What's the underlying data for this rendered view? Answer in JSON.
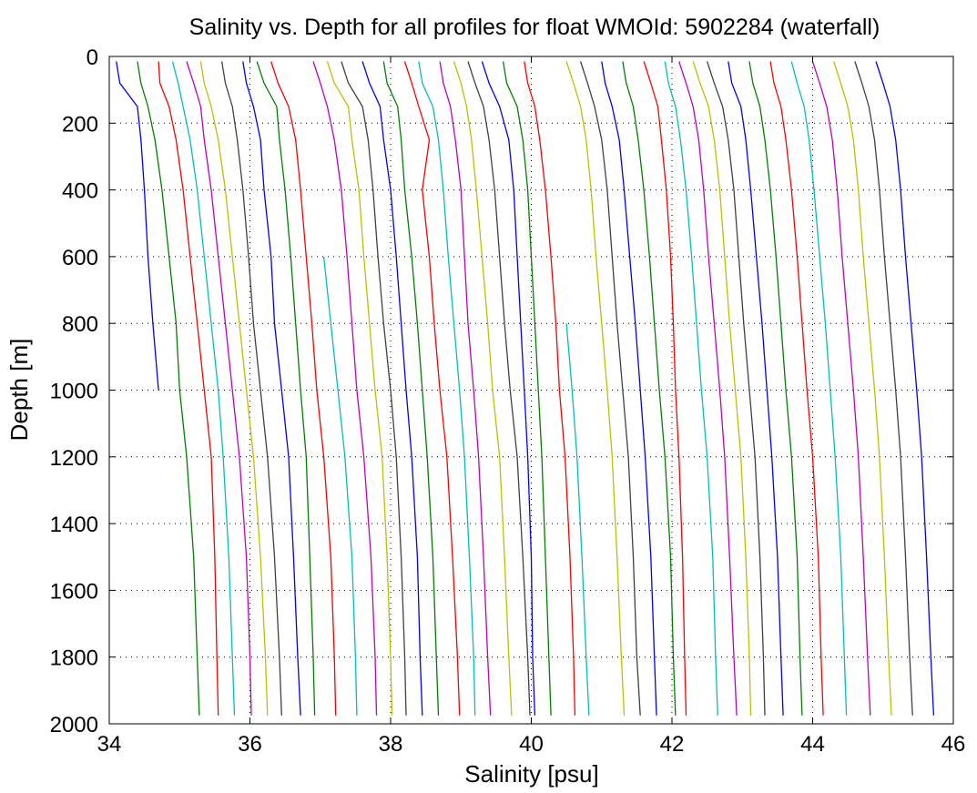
{
  "chart_data": {
    "type": "line",
    "title": "Salinity vs. Depth for all profiles for float WMOId: 5902284 (waterfall)",
    "xlabel": "Salinity [psu]",
    "ylabel": "Depth [m]",
    "xlim": [
      34,
      46
    ],
    "ylim": [
      0,
      2000
    ],
    "y_reversed": true,
    "grid": true,
    "x_ticks": [
      "34",
      "36",
      "38",
      "40",
      "42",
      "44",
      "46"
    ],
    "y_ticks": [
      "0",
      "200",
      "400",
      "600",
      "800",
      "1000",
      "1200",
      "1400",
      "1600",
      "1800",
      "2000"
    ],
    "colors": [
      "#0000ff",
      "#008000",
      "#ff0000",
      "#00bfbf",
      "#bf00bf",
      "#bfbf00",
      "#404040"
    ],
    "depth_levels": [
      15,
      80,
      150,
      250,
      400,
      600,
      800,
      1000,
      1200,
      1500,
      1800,
      1975
    ],
    "series": [
      {
        "color": "#0000ff",
        "values": [
          34.1,
          34.15,
          34.4,
          34.45,
          34.5,
          34.55,
          34.62,
          34.7
        ]
      },
      {
        "color": "#008000",
        "values": [
          34.4,
          34.45,
          34.55,
          34.65,
          34.75,
          34.85,
          34.95,
          35.0,
          35.1,
          35.2,
          35.25,
          35.28
        ]
      },
      {
        "color": "#ff0000",
        "values": [
          34.7,
          34.72,
          34.85,
          34.95,
          35.05,
          35.15,
          35.25,
          35.35,
          35.45,
          35.5,
          35.53,
          35.55
        ]
      },
      {
        "color": "#00bfbf",
        "values": [
          34.9,
          34.98,
          35.05,
          35.15,
          35.25,
          35.35,
          35.45,
          35.55,
          35.62,
          35.7,
          35.75,
          35.78
        ]
      },
      {
        "color": "#bf00bf",
        "values": [
          35.1,
          35.2,
          35.3,
          35.35,
          35.45,
          35.55,
          35.65,
          35.75,
          35.85,
          35.95,
          36.0,
          36.02
        ]
      },
      {
        "color": "#bfbf00",
        "values": [
          35.3,
          35.35,
          35.45,
          35.55,
          35.65,
          35.75,
          35.85,
          35.95,
          36.05,
          36.15,
          36.22,
          36.25
        ]
      },
      {
        "color": "#404040",
        "values": [
          35.6,
          35.65,
          35.75,
          35.82,
          35.9,
          35.98,
          36.05,
          36.15,
          36.25,
          36.35,
          36.42,
          36.45
        ]
      },
      {
        "color": "#0000ff",
        "values": [
          35.9,
          35.95,
          36.05,
          36.15,
          36.2,
          36.3,
          36.35,
          36.45,
          36.55,
          36.62,
          36.68,
          36.72
        ]
      },
      {
        "color": "#008000",
        "values": [
          36.1,
          36.2,
          36.38,
          36.42,
          36.5,
          36.58,
          36.65,
          36.72,
          36.8,
          36.85,
          36.9,
          36.92
        ]
      },
      {
        "color": "#ff0000",
        "values": [
          36.3,
          36.4,
          36.55,
          36.65,
          36.72,
          36.8,
          36.88,
          36.95,
          37.05,
          37.15,
          37.2,
          37.22
        ]
      },
      {
        "color": "#00bfbf",
        "values": [
          null,
          null,
          null,
          null,
          null,
          37.05,
          37.15,
          37.25,
          37.35,
          37.45,
          37.5,
          37.52
        ]
      },
      {
        "color": "#bf00bf",
        "values": [
          36.9,
          37.0,
          37.1,
          37.2,
          37.3,
          37.38,
          37.45,
          37.52,
          37.62,
          37.72,
          37.78,
          37.8
        ]
      },
      {
        "color": "#bfbf00",
        "values": [
          37.1,
          37.2,
          37.4,
          37.45,
          37.55,
          37.62,
          37.7,
          37.78,
          37.88,
          37.95,
          38.0,
          38.02
        ]
      },
      {
        "color": "#404040",
        "values": [
          37.3,
          37.4,
          37.6,
          37.68,
          37.75,
          37.82,
          37.9,
          38.0,
          38.08,
          38.15,
          38.2,
          38.22
        ]
      },
      {
        "color": "#0000ff",
        "values": [
          37.6,
          37.7,
          37.85,
          37.9,
          38.0,
          38.08,
          38.15,
          38.22,
          38.3,
          38.38,
          38.42,
          38.45
        ]
      },
      {
        "color": "#008000",
        "values": [
          37.9,
          37.95,
          38.1,
          38.15,
          38.2,
          38.3,
          38.38,
          38.45,
          38.52,
          38.6,
          38.65,
          38.68
        ]
      },
      {
        "color": "#ff0000",
        "values": [
          38.2,
          38.3,
          38.4,
          38.55,
          38.45,
          38.55,
          38.62,
          38.7,
          38.8,
          38.88,
          38.95,
          38.98
        ]
      },
      {
        "color": "#00bfbf",
        "values": [
          38.4,
          38.45,
          38.6,
          38.68,
          38.75,
          38.82,
          38.9,
          38.98,
          39.05,
          39.12,
          39.18,
          39.2
        ]
      },
      {
        "color": "#bf00bf",
        "values": [
          38.7,
          38.75,
          38.85,
          38.92,
          39.0,
          39.05,
          39.1,
          39.18,
          39.25,
          39.32,
          39.38,
          39.42
        ]
      },
      {
        "color": "#bfbf00",
        "values": [
          38.9,
          39.0,
          39.08,
          39.15,
          39.22,
          39.3,
          39.38,
          39.45,
          39.55,
          39.62,
          39.68,
          39.72
        ]
      },
      {
        "color": "#404040",
        "values": [
          39.1,
          39.2,
          39.32,
          39.4,
          39.48,
          39.55,
          39.62,
          39.7,
          39.8,
          39.88,
          39.95,
          39.98
        ]
      },
      {
        "color": "#0000ff",
        "values": [
          39.3,
          39.4,
          39.55,
          39.68,
          39.75,
          39.8,
          39.85,
          39.9,
          39.95,
          40.0,
          40.02,
          40.05
        ]
      },
      {
        "color": "#008000",
        "values": [
          39.6,
          39.65,
          39.8,
          39.88,
          39.95,
          40.0,
          40.05,
          40.1,
          40.15,
          40.2,
          40.25,
          40.28
        ]
      },
      {
        "color": "#ff0000",
        "values": [
          39.9,
          39.95,
          40.05,
          40.12,
          40.2,
          40.28,
          40.35,
          40.4,
          40.48,
          40.55,
          40.6,
          40.62
        ]
      },
      {
        "color": "#00bfbf",
        "values": [
          null,
          null,
          null,
          null,
          null,
          null,
          40.5,
          40.58,
          40.65,
          40.72,
          40.78,
          40.82
        ]
      },
      {
        "color": "#bfbf00",
        "values": [
          40.5,
          40.6,
          40.7,
          40.78,
          40.85,
          40.92,
          41.0,
          41.08,
          41.15,
          41.22,
          41.28,
          41.32
        ]
      },
      {
        "color": "#404040",
        "values": [
          40.7,
          40.8,
          40.9,
          41.0,
          41.08,
          41.15,
          41.22,
          41.3,
          41.38,
          41.45,
          41.5,
          41.55
        ]
      },
      {
        "color": "#0000ff",
        "values": [
          41.0,
          41.05,
          41.15,
          41.25,
          41.32,
          41.4,
          41.48,
          41.55,
          41.62,
          41.7,
          41.75,
          41.78
        ]
      },
      {
        "color": "#008000",
        "values": [
          41.3,
          41.35,
          41.45,
          41.52,
          41.6,
          41.68,
          41.75,
          41.82,
          41.9,
          41.98,
          42.02,
          42.05
        ]
      },
      {
        "color": "#ff0000",
        "values": [
          41.6,
          41.7,
          41.8,
          41.85,
          41.92,
          41.98,
          42.02,
          42.05,
          42.1,
          42.15,
          42.18,
          42.2
        ]
      },
      {
        "color": "#00bfbf",
        "values": [
          41.9,
          41.95,
          42.05,
          42.12,
          42.2,
          42.28,
          42.35,
          42.42,
          42.5,
          42.58,
          42.62,
          42.65
        ]
      },
      {
        "color": "#bf00bf",
        "values": [
          42.1,
          42.2,
          42.3,
          42.38,
          42.45,
          42.52,
          42.6,
          42.68,
          42.75,
          42.82,
          42.88,
          42.92
        ]
      },
      {
        "color": "#bfbf00",
        "values": [
          42.3,
          42.4,
          42.52,
          42.6,
          42.68,
          42.75,
          42.82,
          42.9,
          42.98,
          43.05,
          43.1,
          43.12
        ]
      },
      {
        "color": "#404040",
        "values": [
          42.5,
          42.6,
          42.72,
          42.8,
          42.88,
          42.95,
          43.02,
          43.1,
          43.18,
          43.25,
          43.3,
          43.32
        ]
      },
      {
        "color": "#0000ff",
        "values": [
          42.8,
          42.85,
          42.98,
          43.05,
          43.12,
          43.2,
          43.28,
          43.35,
          43.42,
          43.5,
          43.55,
          43.58
        ]
      },
      {
        "color": "#008000",
        "values": [
          43.1,
          43.15,
          43.25,
          43.32,
          43.4,
          43.48,
          43.55,
          43.62,
          43.7,
          43.78,
          43.82,
          43.85
        ]
      },
      {
        "color": "#ff0000",
        "values": [
          43.4,
          43.45,
          43.55,
          43.62,
          43.7,
          43.78,
          43.85,
          43.92,
          44.0,
          44.08,
          44.12,
          44.15
        ]
      },
      {
        "color": "#00bfbf",
        "values": [
          43.7,
          43.78,
          43.88,
          43.95,
          44.02,
          44.1,
          44.18,
          44.25,
          44.32,
          44.4,
          44.45,
          44.48
        ]
      },
      {
        "color": "#bf00bf",
        "values": [
          44.0,
          44.1,
          44.2,
          44.28,
          44.35,
          44.42,
          44.5,
          44.58,
          44.65,
          44.72,
          44.78,
          44.82
        ]
      },
      {
        "color": "#bfbf00",
        "values": [
          44.3,
          44.4,
          44.5,
          44.58,
          44.65,
          44.72,
          44.8,
          44.88,
          44.95,
          45.02,
          45.08,
          45.12
        ]
      },
      {
        "color": "#404040",
        "values": [
          44.6,
          44.7,
          44.8,
          44.88,
          44.95,
          45.02,
          45.1,
          45.18,
          45.25,
          45.32,
          45.38,
          45.42
        ]
      },
      {
        "color": "#0000ff",
        "values": [
          44.9,
          45.0,
          45.1,
          45.18,
          45.25,
          45.32,
          45.4,
          45.48,
          45.55,
          45.62,
          45.68,
          45.72
        ]
      }
    ]
  }
}
